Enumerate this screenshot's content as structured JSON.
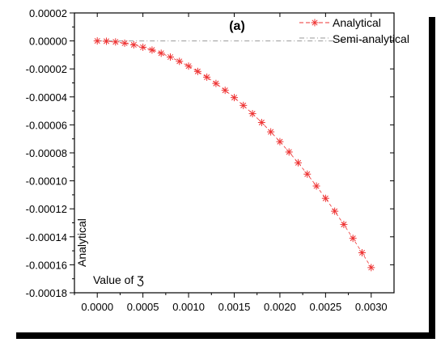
{
  "chart_data": {
    "type": "line",
    "title": "(a)",
    "xlabel": "Value of Ʒ",
    "ylabel": "Analytical",
    "xlim": [
      -0.00025,
      0.00325
    ],
    "ylim": [
      -0.00018,
      2e-05
    ],
    "x_ticks": [
      0.0,
      0.0005,
      0.001,
      0.0015,
      0.002,
      0.0025,
      0.003
    ],
    "x_tick_labels": [
      "0.0000",
      "0.0005",
      "0.0010",
      "0.0015",
      "0.0020",
      "0.0025",
      "0.0030"
    ],
    "y_ticks": [
      2e-05,
      0.0,
      -2e-05,
      -4e-05,
      -6e-05,
      -8e-05,
      -0.0001,
      -0.00012,
      -0.00014,
      -0.00016,
      -0.00018
    ],
    "y_tick_labels": [
      "0.00002",
      "0.00000",
      "-0.00002",
      "-0.00004",
      "-0.00006",
      "-0.00008",
      "-0.00010",
      "-0.00012",
      "-0.00014",
      "-0.00016",
      "-0.00018"
    ],
    "legend_position": "top-right",
    "grid": false,
    "series": [
      {
        "name": "Analytical",
        "color": "#ee3333",
        "marker": "asterisk",
        "x": [
          0.0,
          0.0001,
          0.0002,
          0.0003,
          0.0004,
          0.0005,
          0.0006,
          0.0007,
          0.0008,
          0.0009,
          0.001,
          0.0011,
          0.0012,
          0.0013,
          0.0014,
          0.0015,
          0.0016,
          0.0017,
          0.0018,
          0.0019,
          0.002,
          0.0021,
          0.0022,
          0.0023,
          0.0024,
          0.0025,
          0.0026,
          0.0027,
          0.0028,
          0.0029,
          0.003
        ],
        "y": [
          0.0,
          -2e-07,
          -7e-07,
          -1.6e-06,
          -2.8e-06,
          -4.5e-06,
          -6.5e-06,
          -8.8e-06,
          -1.15e-05,
          -1.46e-05,
          -1.8e-05,
          -2.18e-05,
          -2.59e-05,
          -3.04e-05,
          -3.53e-05,
          -4.05e-05,
          -4.61e-05,
          -5.2e-05,
          -5.83e-05,
          -6.5e-05,
          -7.2e-05,
          -7.94e-05,
          -8.71e-05,
          -9.52e-05,
          -0.0001037,
          -0.0001125,
          -0.0001217,
          -0.0001312,
          -0.0001411,
          -0.0001514,
          -0.000162
        ]
      },
      {
        "name": "Semi-analytical",
        "color": "#999999",
        "marker": "none",
        "x": [
          0.0,
          0.003
        ],
        "y": [
          0.0,
          0.0
        ]
      }
    ]
  }
}
